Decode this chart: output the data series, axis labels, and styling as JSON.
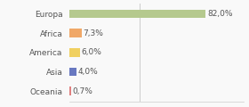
{
  "categories": [
    "Europa",
    "Africa",
    "America",
    "Asia",
    "Oceania"
  ],
  "values": [
    82.0,
    7.3,
    6.0,
    4.0,
    0.7
  ],
  "labels": [
    "82,0%",
    "7,3%",
    "6,0%",
    "4,0%",
    "0,7%"
  ],
  "bar_colors": [
    "#b5c98e",
    "#f0a868",
    "#f0d060",
    "#6878c0",
    "#e08080"
  ],
  "background_color": "#f9f9f9",
  "xlim": [
    0,
    105
  ],
  "label_fontsize": 6.5,
  "tick_fontsize": 6.5,
  "bar_height": 0.45,
  "vline_x": 42,
  "vline_color": "#cccccc",
  "spine_color": "#cccccc",
  "text_color": "#555555"
}
